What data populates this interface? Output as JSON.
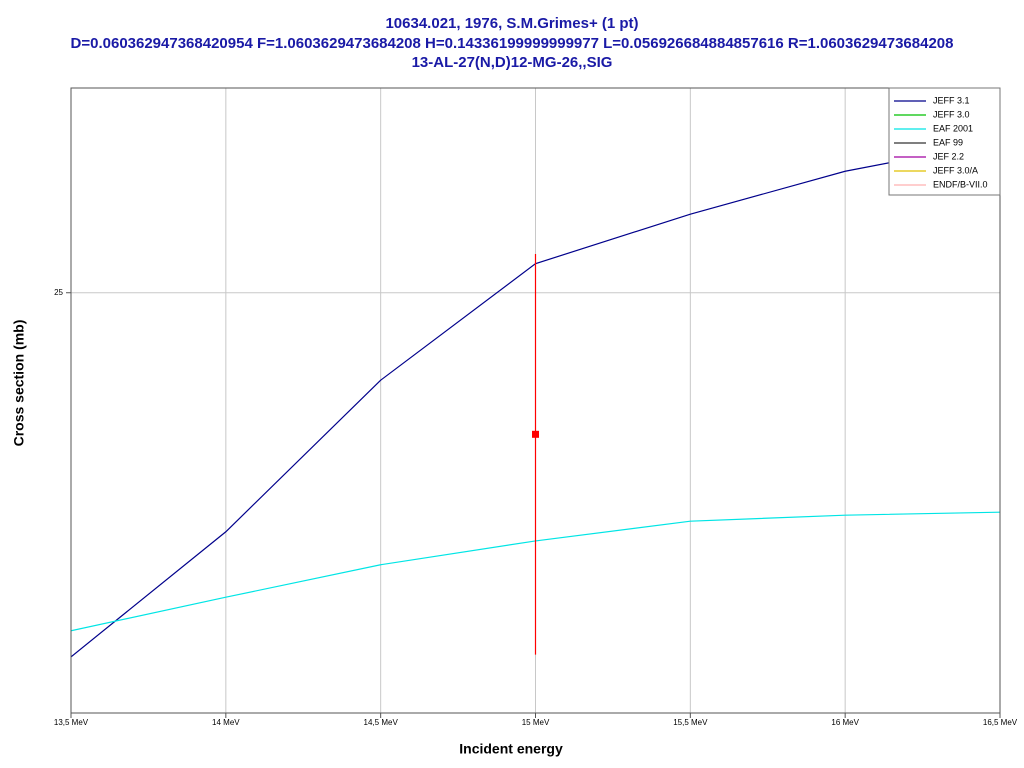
{
  "chart_data": {
    "type": "line",
    "title": [
      "10634.021, 1976, S.M.Grimes+ (1 pt)",
      "D=0.060362947368420954 F=1.0603629473684208 H=0.14336199999999977 L=0.056926684884857616 R=1.0603629473684208",
      "13-AL-27(N,D)12-MG-26,,SIG"
    ],
    "x_label": "Incident energy",
    "y_label": "Cross section (mb)",
    "x": [
      13.5,
      14,
      14.5,
      15,
      15.5,
      16,
      16.5
    ],
    "series": [
      {
        "name": "JEFF 3.1",
        "color": "#00008b",
        "values": [
          17.35,
          19.67,
          22.9,
          25.74,
          27.05,
          28.24,
          29.1
        ]
      },
      {
        "name": "JEFF 3.0",
        "color": "#00c000",
        "values": [
          null,
          null,
          null,
          null,
          null,
          null,
          null
        ]
      },
      {
        "name": "EAF 2001",
        "color": "#00e5e5",
        "values": [
          17.81,
          18.42,
          19.03,
          19.49,
          19.88,
          20.0,
          20.06
        ]
      },
      {
        "name": "EAF 99",
        "color": "#333333",
        "values": [
          null,
          null,
          null,
          null,
          null,
          null,
          null
        ]
      },
      {
        "name": "JEF 2.2",
        "color": "#a000a0",
        "values": [
          null,
          null,
          null,
          null,
          null,
          null,
          null
        ]
      },
      {
        "name": "JEFF 3.0/A",
        "color": "#e0c000",
        "values": [
          null,
          null,
          null,
          null,
          null,
          null,
          null
        ]
      },
      {
        "name": "ENDF/B-VII.0",
        "color": "#ffb0b0",
        "values": [
          null,
          null,
          null,
          null,
          null,
          null,
          null
        ]
      }
    ],
    "experimental": {
      "x": [
        15
      ],
      "y": [
        21.69
      ],
      "yerr": [
        4.3
      ],
      "color": "#ff0000"
    },
    "xlim": [
      13.5,
      16.5
    ],
    "xticks": [
      {
        "value": 13.5,
        "label": "13,5 MeV"
      },
      {
        "value": 14,
        "label": "14 MeV"
      },
      {
        "value": 14.5,
        "label": "14,5 MeV"
      },
      {
        "value": 15,
        "label": "15 MeV"
      },
      {
        "value": 15.5,
        "label": "15,5 MeV"
      },
      {
        "value": 16,
        "label": "16 MeV"
      },
      {
        "value": 16.5,
        "label": "16,5 MeV"
      }
    ],
    "ylim": [
      16.4,
      30.7
    ],
    "yticks": [
      25
    ],
    "ylog": true,
    "grid": true,
    "legend": "upper right"
  }
}
